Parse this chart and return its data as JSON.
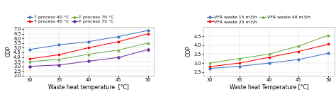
{
  "chart1": {
    "x": [
      30,
      35,
      40,
      45,
      50
    ],
    "series": [
      {
        "label": "T process 40 °C",
        "color": "#4472C4",
        "values": [
          4.8,
          5.3,
          5.65,
          6.2,
          6.85
        ],
        "marker": "o"
      },
      {
        "label": "T process 45 °C",
        "color": "#FF0000",
        "values": [
          3.8,
          4.25,
          5.0,
          5.65,
          6.5
        ],
        "marker": "s"
      },
      {
        "label": "T process 70 °C",
        "color": "#70AD47",
        "values": [
          3.5,
          3.75,
          4.3,
          4.75,
          5.5
        ],
        "marker": "^"
      },
      {
        "label": "T process 75 °C",
        "color": "#7030A0",
        "values": [
          3.0,
          3.15,
          3.55,
          3.95,
          4.8
        ],
        "marker": "D"
      }
    ],
    "xlabel": "Waste heat temperature  [°C]",
    "ylabel": "COP",
    "xlim": [
      29,
      51
    ],
    "ylim": [
      2.0,
      7.2
    ],
    "xticks": [
      30,
      35,
      40,
      45,
      50
    ],
    "yticks": [
      2.0,
      2.5,
      3.0,
      3.5,
      4.0,
      4.5,
      5.0,
      5.5,
      6.0,
      6.5,
      7.0
    ],
    "legend_ncol": 2,
    "legend_entries_row1": [
      "T process 40 °C",
      "T process 45 °C"
    ],
    "legend_entries_row2": [
      "T process 70 °C",
      "T process 75 °C"
    ]
  },
  "chart2": {
    "x": [
      30,
      35,
      40,
      45,
      50
    ],
    "series": [
      {
        "label": "VFR waste 15 m3/h",
        "color": "#4472C4",
        "values": [
          2.7,
          2.82,
          3.0,
          3.2,
          3.55
        ],
        "marker": "o"
      },
      {
        "label": "VFR waste 25 m3/h",
        "color": "#FF0000",
        "values": [
          2.8,
          3.0,
          3.32,
          3.65,
          4.05
        ],
        "marker": "s"
      },
      {
        "label": "VFR waste 48 m3/h",
        "color": "#70AD47",
        "values": [
          3.0,
          3.25,
          3.5,
          3.95,
          4.55
        ],
        "marker": "^"
      }
    ],
    "xlabel": "Waste heat Temperature [°C]",
    "ylabel": "COP",
    "xlim": [
      29,
      51
    ],
    "ylim": [
      2.3,
      5.0
    ],
    "xticks": [
      30,
      35,
      40,
      45,
      50
    ],
    "yticks": [
      2.5,
      3.0,
      3.5,
      4.0,
      4.5
    ]
  },
  "bg_color": "#FFFFFF",
  "legend_fontsize": 4.5,
  "axis_label_fontsize": 5.5,
  "tick_fontsize": 4.8,
  "marker_size": 2.0,
  "line_width": 0.75
}
